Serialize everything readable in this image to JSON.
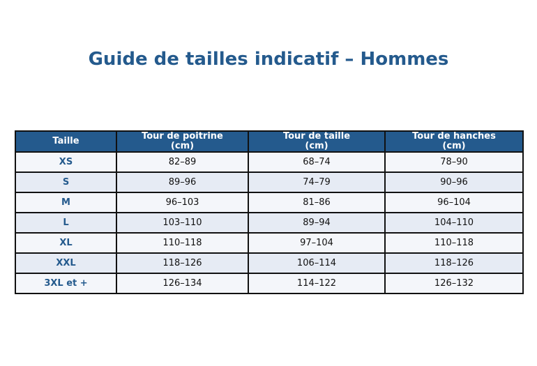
{
  "title": "Guide de tailles indicatif – Hommes",
  "table": {
    "headers": {
      "size": "Taille",
      "chest_line1": "Tour de poitrine",
      "chest_line2": "(cm)",
      "waist_line1": "Tour de taille",
      "waist_line2": "(cm)",
      "hips_line1": "Tour de hanches",
      "hips_line2": "(cm)"
    },
    "rows": [
      {
        "size": "XS",
        "chest": "82–89",
        "waist": "68–74",
        "hips": "78–90"
      },
      {
        "size": "S",
        "chest": "89–96",
        "waist": "74–79",
        "hips": "90–96"
      },
      {
        "size": "M",
        "chest": "96–103",
        "waist": "81–86",
        "hips": "96–104"
      },
      {
        "size": "L",
        "chest": "103–110",
        "waist": "89–94",
        "hips": "104–110"
      },
      {
        "size": "XL",
        "chest": "110–118",
        "waist": "97–104",
        "hips": "110–118"
      },
      {
        "size": "XXL",
        "chest": "118–126",
        "waist": "106–114",
        "hips": "118–126"
      },
      {
        "size": "3XL et +",
        "chest": "126–134",
        "waist": "114–122",
        "hips": "126–132"
      }
    ]
  },
  "colors": {
    "header_bg": "#245a8d",
    "title": "#245a8d",
    "row_light": "#f4f6fa",
    "row_alt": "#e6ebf4"
  }
}
